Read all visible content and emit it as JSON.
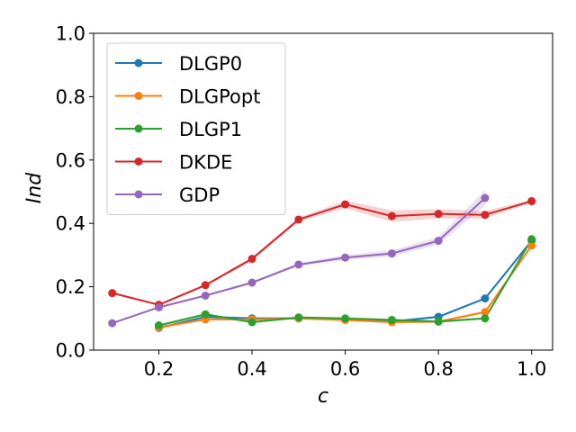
{
  "chart_data": {
    "type": "line",
    "title": "",
    "xlabel": "c",
    "ylabel": "Ind",
    "xlim": [
      0.06,
      1.045
    ],
    "ylim": [
      0.0,
      1.0
    ],
    "xticks": [
      0.2,
      0.4,
      0.6,
      0.8,
      1.0
    ],
    "xtick_labels": [
      "0.2",
      "0.4",
      "0.6",
      "0.8",
      "1.0"
    ],
    "yticks": [
      0.0,
      0.2,
      0.4,
      0.6,
      0.8,
      1.0
    ],
    "ytick_labels": [
      "0.0",
      "0.2",
      "0.4",
      "0.6",
      "0.8",
      "1.0"
    ],
    "legend_position": "top-left",
    "series": [
      {
        "name": "DLGP0",
        "color": "#1f77b4",
        "x": [
          0.2,
          0.3,
          0.4,
          0.5,
          0.6,
          0.7,
          0.8,
          0.9,
          1.0
        ],
        "values": [
          0.07,
          0.105,
          0.1,
          0.1,
          0.098,
          0.09,
          0.105,
          0.163,
          0.345
        ],
        "band": 0.004
      },
      {
        "name": "DLGPopt",
        "color": "#ff7f0e",
        "x": [
          0.2,
          0.3,
          0.4,
          0.5,
          0.6,
          0.7,
          0.8,
          0.9,
          1.0
        ],
        "values": [
          0.072,
          0.097,
          0.097,
          0.1,
          0.095,
          0.088,
          0.09,
          0.12,
          0.33
        ],
        "band": 0.004
      },
      {
        "name": "DLGP1",
        "color": "#2ca02c",
        "x": [
          0.2,
          0.3,
          0.4,
          0.5,
          0.6,
          0.7,
          0.8,
          0.9,
          1.0
        ],
        "values": [
          0.078,
          0.113,
          0.088,
          0.103,
          0.1,
          0.095,
          0.09,
          0.1,
          0.35
        ],
        "band": 0.004
      },
      {
        "name": "DKDE",
        "color": "#d62728",
        "x": [
          0.1,
          0.2,
          0.3,
          0.4,
          0.5,
          0.6,
          0.7,
          0.8,
          0.9,
          1.0
        ],
        "values": [
          0.18,
          0.143,
          0.205,
          0.288,
          0.412,
          0.46,
          0.423,
          0.43,
          0.427,
          0.47
        ],
        "band": [
          0.003,
          0.003,
          0.004,
          0.006,
          0.006,
          0.012,
          0.018,
          0.015,
          0.012,
          0.005
        ]
      },
      {
        "name": "GDP",
        "color": "#9467bd",
        "x": [
          0.1,
          0.2,
          0.3,
          0.4,
          0.5,
          0.6,
          0.7,
          0.8,
          0.9
        ],
        "values": [
          0.085,
          0.135,
          0.172,
          0.213,
          0.27,
          0.292,
          0.305,
          0.345,
          0.48
        ],
        "band": [
          0.003,
          0.003,
          0.004,
          0.004,
          0.005,
          0.008,
          0.01,
          0.012,
          0.025
        ]
      }
    ]
  }
}
